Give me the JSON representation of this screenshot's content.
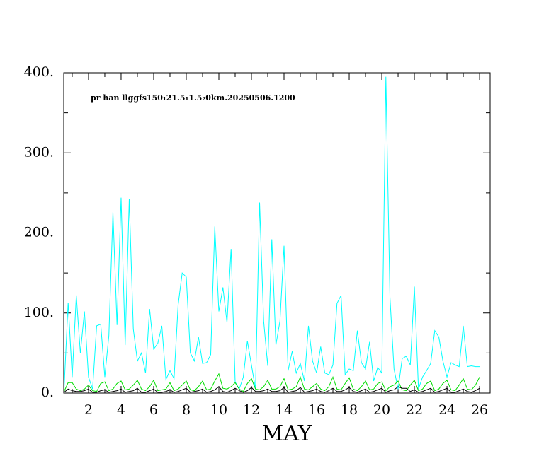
{
  "chart_data": {
    "type": "line",
    "annotation": "pr han llggfs150₁21.5₁1.5₂0km.20250506.1200",
    "xlabel": "MAY",
    "x": [
      0.5,
      0.75,
      1,
      1.25,
      1.5,
      1.75,
      2,
      2.25,
      2.5,
      2.75,
      3,
      3.25,
      3.5,
      3.75,
      4,
      4.25,
      4.5,
      4.75,
      5,
      5.25,
      5.5,
      5.75,
      6,
      6.25,
      6.5,
      6.75,
      7,
      7.25,
      7.5,
      7.75,
      8,
      8.25,
      8.5,
      8.75,
      9,
      9.25,
      9.5,
      9.75,
      10,
      10.25,
      10.5,
      10.75,
      11,
      11.25,
      11.5,
      11.75,
      12,
      12.25,
      12.5,
      12.75,
      13,
      13.25,
      13.5,
      13.75,
      14,
      14.25,
      14.5,
      14.75,
      15,
      15.25,
      15.5,
      15.75,
      16,
      16.25,
      16.5,
      16.75,
      17,
      17.25,
      17.5,
      17.75,
      18,
      18.25,
      18.5,
      18.75,
      19,
      19.25,
      19.5,
      19.75,
      20,
      20.25,
      20.5,
      20.75,
      21,
      21.25,
      21.5,
      21.75,
      22,
      22.25,
      22.5,
      22.75,
      23,
      23.25,
      23.5,
      23.75,
      24,
      24.25,
      24.5,
      24.75,
      25,
      25.25,
      25.5,
      25.75,
      26
    ],
    "series": [
      {
        "color": "#00ffff",
        "values": [
          5,
          113,
          20,
          122,
          50,
          102,
          20,
          5,
          84,
          86,
          20,
          72,
          226,
          85,
          244,
          60,
          242,
          80,
          40,
          50,
          25,
          105,
          55,
          62,
          84,
          17,
          28,
          18,
          110,
          150,
          145,
          50,
          40,
          70,
          37,
          38,
          48,
          208,
          102,
          132,
          88,
          180,
          14,
          5,
          20,
          65,
          35,
          5,
          238,
          90,
          34,
          192,
          60,
          90,
          184,
          28,
          52,
          25,
          37,
          15,
          84,
          40,
          25,
          58,
          25,
          23,
          35,
          112,
          122,
          23,
          30,
          28,
          78,
          38,
          30,
          64,
          15,
          32,
          25,
          395,
          120,
          30,
          5,
          43,
          46,
          35,
          133,
          5,
          20,
          28,
          37,
          78,
          70,
          40,
          20,
          38,
          35,
          33,
          84,
          33,
          34,
          33,
          33
        ]
      },
      {
        "color": "#00dd00",
        "values": [
          2,
          13,
          13,
          5,
          3,
          5,
          10,
          3,
          2,
          12,
          14,
          3,
          5,
          12,
          15,
          4,
          5,
          10,
          16,
          5,
          3,
          8,
          16,
          3,
          4,
          5,
          13,
          3,
          5,
          10,
          15,
          4,
          3,
          8,
          15,
          4,
          5,
          15,
          24,
          6,
          5,
          8,
          13,
          5,
          2,
          12,
          18,
          5,
          4,
          8,
          16,
          5,
          5,
          8,
          18,
          4,
          5,
          8,
          20,
          5,
          4,
          8,
          12,
          5,
          3,
          8,
          20,
          5,
          4,
          12,
          19,
          5,
          3,
          8,
          15,
          4,
          5,
          12,
          14,
          3,
          8,
          10,
          15,
          4,
          3,
          10,
          16,
          3,
          5,
          12,
          15,
          3,
          5,
          12,
          16,
          4,
          3,
          10,
          18,
          5,
          4,
          10,
          20
        ]
      },
      {
        "color": "#000000",
        "values": [
          1,
          5,
          3,
          2,
          2,
          3,
          5,
          1,
          1,
          3,
          4,
          1,
          2,
          3,
          5,
          1,
          2,
          3,
          6,
          1,
          1,
          3,
          5,
          1,
          1,
          2,
          4,
          1,
          2,
          4,
          6,
          1,
          2,
          3,
          5,
          1,
          2,
          4,
          8,
          2,
          1,
          3,
          6,
          3,
          1,
          3,
          7,
          2,
          2,
          3,
          5,
          2,
          2,
          3,
          7,
          1,
          2,
          3,
          7,
          1,
          2,
          3,
          5,
          2,
          1,
          3,
          6,
          2,
          2,
          4,
          7,
          2,
          1,
          3,
          5,
          1,
          2,
          4,
          6,
          1,
          3,
          4,
          8,
          6,
          6,
          2,
          4,
          1,
          2,
          4,
          6,
          1,
          2,
          4,
          6,
          1,
          1,
          3,
          5,
          2,
          1,
          3,
          6
        ]
      }
    ],
    "xlim": [
      0.48,
      26.65
    ],
    "xticks": [
      2,
      4,
      6,
      8,
      10,
      12,
      14,
      16,
      18,
      20,
      22,
      24,
      26
    ],
    "ylim": [
      0,
      400
    ],
    "yticks": [
      {
        "value": 0,
        "label": "0."
      },
      {
        "value": 100,
        "label": "100."
      },
      {
        "value": 200,
        "label": "200."
      },
      {
        "value": 300,
        "label": "300."
      },
      {
        "value": 400,
        "label": "400."
      }
    ]
  }
}
